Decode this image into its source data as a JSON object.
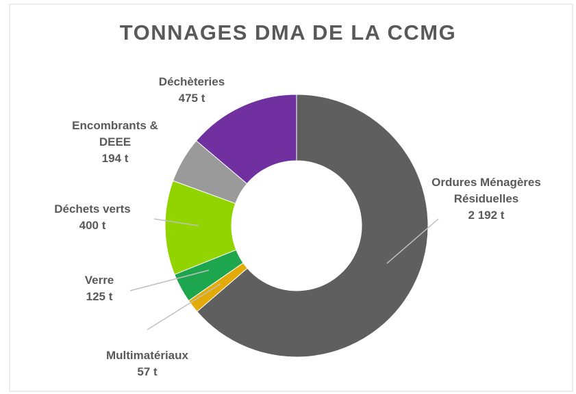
{
  "chart_data": {
    "type": "donut",
    "title": "TONNAGES DMA DE LA CCMG",
    "categories": [
      "Ordures Ménagères Résiduelles",
      "Multimatériaux",
      "Verre",
      "Déchets verts",
      "Encombrants & DEEE",
      "Déchèteries"
    ],
    "values": [
      2192,
      57,
      125,
      400,
      194,
      475
    ],
    "value_labels": [
      "2 192 t",
      "57 t",
      "125 t",
      "400 t",
      "194 t",
      "475 t"
    ],
    "colors": [
      "#5f5f5f",
      "#e3ab0a",
      "#1ea64f",
      "#92d400",
      "#9a9a9a",
      "#7030a0"
    ]
  }
}
